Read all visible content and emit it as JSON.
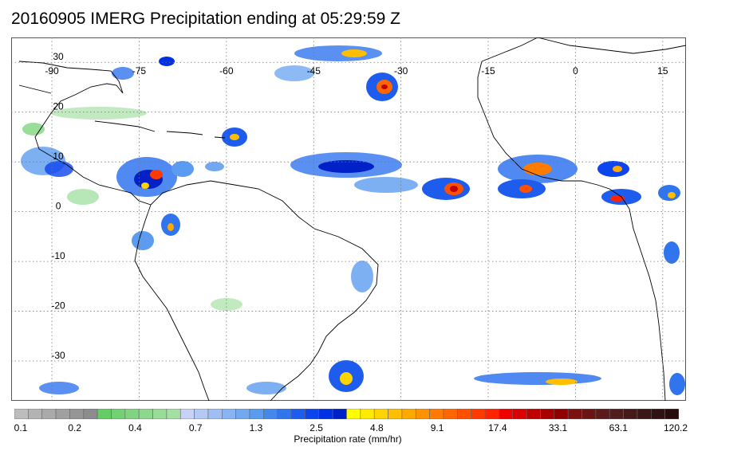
{
  "title": "20160905 IMERG Precipitation ending at 05:29:59 Z",
  "map": {
    "projection": "equirectangular",
    "lon_range": [
      -97,
      19
    ],
    "lat_range": [
      -38,
      35
    ],
    "longitude_labels": [
      "-90",
      "-75",
      "-60",
      "-45",
      "-30",
      "-15",
      "0",
      "15"
    ],
    "longitude_values": [
      -90,
      -75,
      -60,
      -45,
      -30,
      -15,
      0,
      15
    ],
    "latitude_labels": [
      "30",
      "20",
      "10",
      "0",
      "-10",
      "-20",
      "-30"
    ],
    "latitude_values": [
      30,
      20,
      10,
      0,
      -10,
      -20,
      -30
    ],
    "gridlines": "dotted",
    "coastline_color": "#000000"
  },
  "colorbar": {
    "title": "Precipitation rate (mm/hr)",
    "tick_labels": [
      "0.1",
      "0.2",
      "0.4",
      "0.7",
      "1.3",
      "2.5",
      "4.8",
      "9.1",
      "17.4",
      "33.1",
      "63.1",
      "120.2"
    ],
    "colors": [
      "#bdbdbd",
      "#b3b3b3",
      "#aaaaaa",
      "#a0a0a0",
      "#969696",
      "#8c8c8c",
      "#66cc66",
      "#74d074",
      "#80d480",
      "#8cd88c",
      "#98dc98",
      "#a4e0a4",
      "#c8d2f4",
      "#b4c8f4",
      "#9ebef4",
      "#88b4f4",
      "#72a8f0",
      "#5c9cf0",
      "#4488ee",
      "#3074ee",
      "#1e5cee",
      "#0c44ee",
      "#0030e6",
      "#0020c8",
      "#ffff00",
      "#ffea00",
      "#ffd400",
      "#ffbe00",
      "#ffa800",
      "#ff9200",
      "#ff7c00",
      "#ff6600",
      "#ff5000",
      "#ff3a00",
      "#ff2400",
      "#f00000",
      "#d80000",
      "#c00000",
      "#a80000",
      "#900000",
      "#7a1010",
      "#6a1414",
      "#5c1a1a",
      "#501c1c",
      "#441a1a",
      "#3a1616",
      "#301212",
      "#280c0c"
    ]
  }
}
